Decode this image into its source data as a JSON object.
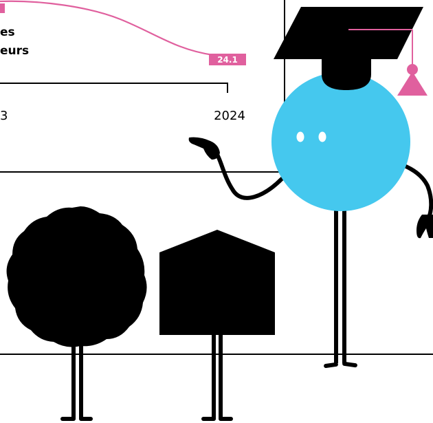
{
  "chart": {
    "legend_line1": "es",
    "legend_line2": "eurs",
    "value_label": "24.1",
    "tick_left": "3",
    "tick_right": "2024"
  },
  "colors": {
    "pink": "#E0609E",
    "sky": "#45C8EE",
    "ink": "#000000"
  },
  "icons": [
    "mortarboard-icon",
    "tassel-icon",
    "character-eyes-icon",
    "scalloped-badge-icon",
    "house-shape-icon",
    "pointing-hand-icon"
  ]
}
